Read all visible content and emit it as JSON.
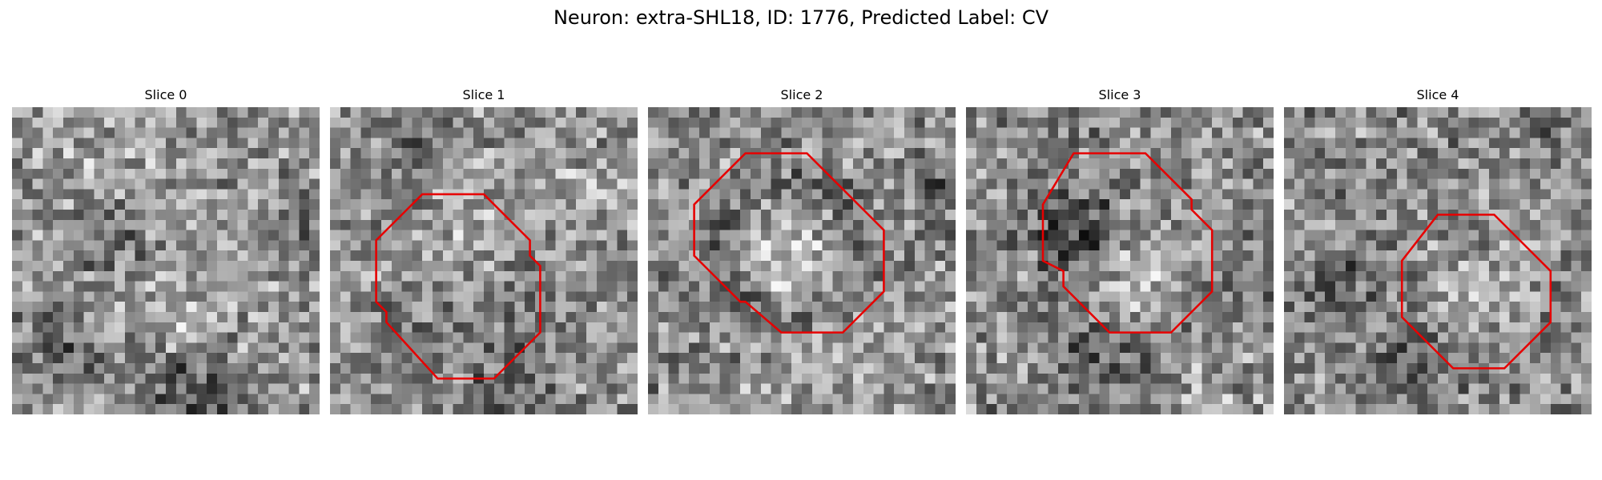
{
  "figure": {
    "title": "Neuron: extra-SHL18, ID: 1776, Predicted Label: CV"
  },
  "slices": [
    {
      "label": "Slice 0",
      "has_roi": false
    },
    {
      "label": "Slice 1",
      "has_roi": true
    },
    {
      "label": "Slice 2",
      "has_roi": true
    },
    {
      "label": "Slice 3",
      "has_roi": true
    },
    {
      "label": "Slice 4",
      "has_roi": true
    }
  ],
  "colors": {
    "roi_outline": "#e60000",
    "background": "#ffffff"
  }
}
